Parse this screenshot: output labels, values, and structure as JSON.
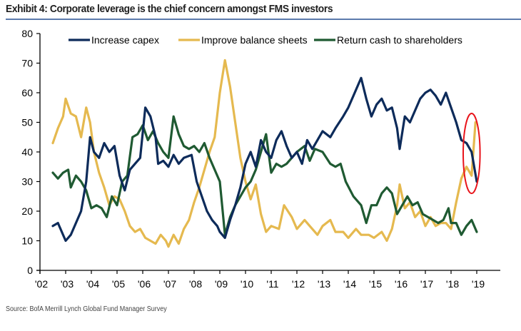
{
  "title": "Exhibit 4: Corporate leverage is the chief concern amongst FMS investors",
  "source": "Source:  BofA Merrill Lynch Global Fund Manager Survey",
  "chart_data": {
    "type": "line",
    "title": "Exhibit 4: Corporate leverage is the chief concern amongst FMS investors",
    "xlabel": "",
    "ylabel": "",
    "xlim": [
      2002,
      2019.9
    ],
    "ylim": [
      0,
      80
    ],
    "yticks": [
      0,
      10,
      20,
      30,
      40,
      50,
      60,
      70,
      80
    ],
    "xticks": [
      2002,
      2003,
      2004,
      2005,
      2006,
      2007,
      2008,
      2009,
      2010,
      2011,
      2012,
      2013,
      2014,
      2015,
      2016,
      2017,
      2018,
      2019
    ],
    "xtick_labels": [
      "'02",
      "'03",
      "'04",
      "'05",
      "'06",
      "'07",
      "'08",
      "'09",
      "'10",
      "'11",
      "'12",
      "'13",
      "'14",
      "'15",
      "'16",
      "'17",
      "'18",
      "'19"
    ],
    "grid": false,
    "legend_position": "top",
    "annotation": "red ellipse highlighting latest readings (late 2018 - early 2019)",
    "annotation_range": {
      "x": [
        2018.5,
        2019.1
      ],
      "y": [
        26,
        53
      ]
    },
    "series": [
      {
        "name": "Increase capex",
        "color": "#0d2b5a",
        "x": [
          2002.5,
          2002.7,
          2002.9,
          2003.0,
          2003.2,
          2003.4,
          2003.6,
          2003.8,
          2003.95,
          2004.1,
          2004.3,
          2004.5,
          2004.7,
          2004.9,
          2005.1,
          2005.3,
          2005.5,
          2005.7,
          2005.9,
          2006.1,
          2006.3,
          2006.5,
          2006.6,
          2006.8,
          2007.0,
          2007.2,
          2007.4,
          2007.6,
          2007.9,
          2008.1,
          2008.3,
          2008.5,
          2008.7,
          2008.9,
          2009.0,
          2009.2,
          2009.4,
          2009.6,
          2009.8,
          2010.0,
          2010.2,
          2010.4,
          2010.6,
          2010.8,
          2011.0,
          2011.2,
          2011.4,
          2011.6,
          2011.8,
          2012.0,
          2012.2,
          2012.4,
          2012.6,
          2012.8,
          2013.0,
          2013.3,
          2013.5,
          2013.8,
          2014.0,
          2014.2,
          2014.5,
          2014.7,
          2014.9,
          2015.1,
          2015.3,
          2015.5,
          2015.7,
          2015.9,
          2016.0,
          2016.2,
          2016.4,
          2016.6,
          2016.8,
          2017.0,
          2017.2,
          2017.4,
          2017.6,
          2017.8,
          2018.0,
          2018.2,
          2018.4,
          2018.6,
          2018.8,
          2019.0
        ],
        "values": [
          15,
          16,
          12,
          10,
          12,
          16,
          20,
          30,
          45,
          40,
          38,
          43,
          40,
          42,
          32,
          27,
          34,
          36,
          38,
          55,
          52,
          45,
          36,
          37,
          35,
          39,
          36,
          38,
          39,
          30,
          25,
          20,
          17,
          15,
          13,
          11,
          17,
          22,
          28,
          36,
          40,
          35,
          44,
          40,
          38,
          44,
          47,
          42,
          38,
          40,
          36,
          44,
          41,
          44,
          47,
          45,
          48,
          52,
          55,
          59,
          65,
          58,
          52,
          56,
          58,
          54,
          55,
          48,
          41,
          52,
          50,
          54,
          58,
          60,
          61,
          59,
          56,
          60,
          55,
          50,
          44,
          43,
          40,
          30
        ]
      },
      {
        "name": "Improve balance sheets",
        "color": "#e5b94f",
        "x": [
          2002.5,
          2002.7,
          2002.9,
          2003.0,
          2003.2,
          2003.4,
          2003.6,
          2003.8,
          2003.95,
          2004.1,
          2004.3,
          2004.5,
          2004.7,
          2004.9,
          2005.1,
          2005.3,
          2005.5,
          2005.7,
          2005.9,
          2006.1,
          2006.3,
          2006.5,
          2006.7,
          2006.9,
          2007.0,
          2007.2,
          2007.4,
          2007.6,
          2007.8,
          2008.0,
          2008.2,
          2008.4,
          2008.6,
          2008.8,
          2009.0,
          2009.2,
          2009.4,
          2009.6,
          2009.8,
          2010.0,
          2010.2,
          2010.4,
          2010.6,
          2010.8,
          2011.0,
          2011.3,
          2011.5,
          2011.8,
          2012.0,
          2012.3,
          2012.5,
          2012.8,
          2013.0,
          2013.3,
          2013.5,
          2013.8,
          2014.0,
          2014.3,
          2014.5,
          2014.8,
          2015.0,
          2015.3,
          2015.5,
          2015.7,
          2015.9,
          2016.0,
          2016.2,
          2016.4,
          2016.6,
          2016.8,
          2017.0,
          2017.2,
          2017.4,
          2017.6,
          2017.8,
          2018.0,
          2018.2,
          2018.4,
          2018.6,
          2018.8,
          2018.95
        ],
        "values": [
          43,
          48,
          52,
          58,
          53,
          52,
          45,
          55,
          50,
          40,
          33,
          28,
          22,
          25,
          24,
          20,
          15,
          13,
          14,
          11,
          10,
          9,
          12,
          10,
          8,
          12,
          9,
          14,
          17,
          23,
          28,
          34,
          40,
          45,
          60,
          71,
          62,
          50,
          38,
          30,
          24,
          29,
          19,
          13,
          15,
          14,
          22,
          18,
          14,
          17,
          15,
          12,
          15,
          17,
          13,
          13,
          11,
          14,
          12,
          12,
          11,
          13,
          10,
          14,
          22,
          29,
          21,
          23,
          18,
          20,
          15,
          18,
          15,
          16,
          16,
          14,
          23,
          31,
          35,
          32,
          50
        ]
      },
      {
        "name": "Return cash to shareholders",
        "color": "#1f5a32",
        "x": [
          2002.5,
          2002.7,
          2002.9,
          2003.1,
          2003.2,
          2003.4,
          2003.6,
          2003.8,
          2004.0,
          2004.2,
          2004.4,
          2004.6,
          2004.8,
          2005.0,
          2005.2,
          2005.4,
          2005.6,
          2005.8,
          2006.0,
          2006.2,
          2006.4,
          2006.6,
          2006.8,
          2007.0,
          2007.2,
          2007.4,
          2007.6,
          2007.8,
          2008.0,
          2008.2,
          2008.4,
          2008.6,
          2008.8,
          2009.0,
          2009.2,
          2009.4,
          2009.6,
          2009.8,
          2010.0,
          2010.2,
          2010.4,
          2010.6,
          2010.8,
          2011.0,
          2011.2,
          2011.4,
          2011.6,
          2011.8,
          2012.0,
          2012.3,
          2012.5,
          2012.7,
          2013.0,
          2013.3,
          2013.5,
          2013.7,
          2013.9,
          2014.2,
          2014.5,
          2014.7,
          2014.9,
          2015.1,
          2015.3,
          2015.5,
          2015.7,
          2015.9,
          2016.1,
          2016.3,
          2016.5,
          2016.7,
          2016.9,
          2017.1,
          2017.3,
          2017.5,
          2017.7,
          2017.9,
          2018.0,
          2018.2,
          2018.4,
          2018.6,
          2018.8,
          2019.0
        ],
        "values": [
          33,
          31,
          33,
          34,
          28,
          32,
          30,
          27,
          21,
          22,
          21,
          18,
          25,
          22,
          30,
          32,
          45,
          46,
          49,
          44,
          47,
          43,
          40,
          38,
          52,
          46,
          42,
          41,
          42,
          40,
          43,
          38,
          34,
          30,
          12,
          18,
          22,
          25,
          28,
          30,
          34,
          40,
          46,
          33,
          36,
          35,
          36,
          38,
          40,
          42,
          37,
          41,
          40,
          36,
          35,
          36,
          30,
          25,
          22,
          16,
          22,
          22,
          26,
          28,
          26,
          19,
          22,
          25,
          22,
          23,
          19,
          18,
          17,
          16,
          17,
          21,
          16,
          16,
          12,
          15,
          17,
          13
        ]
      }
    ]
  }
}
